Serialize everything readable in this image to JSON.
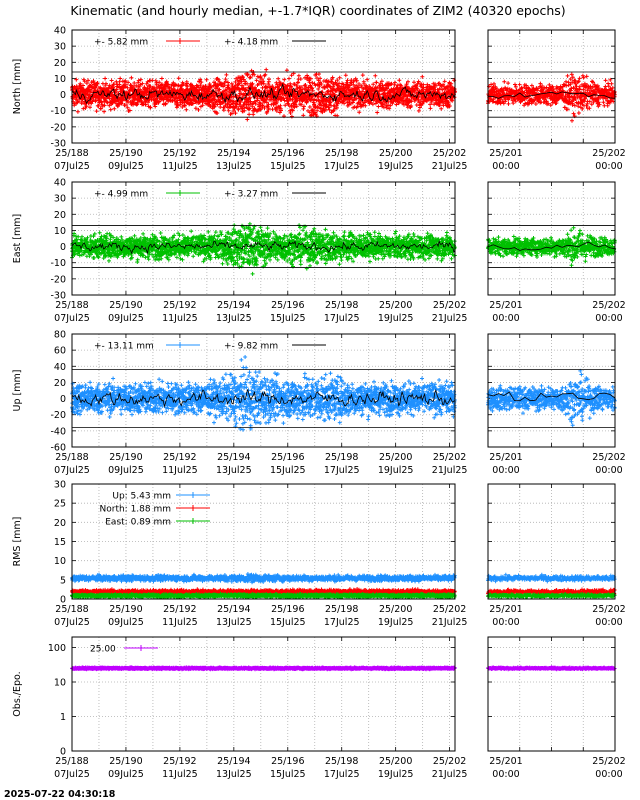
{
  "title": "Kinematic (and hourly median, +-1.7*IQR) coordinates of ZIM2 (40320 epochs)",
  "timestamp": "2025-07-22 04:30:18",
  "colors": {
    "north": "#ff0000",
    "east": "#00c000",
    "up": "#1e90ff",
    "obs": "#c000ff",
    "median": "#000000",
    "grid": "#b0b0b0"
  },
  "chart_data": [
    {
      "type": "scatter",
      "id": "north",
      "ylabel": "North [mm]",
      "ylim": [
        -30,
        40
      ],
      "yticks": [
        -30,
        -20,
        -10,
        0,
        10,
        20,
        30,
        40
      ],
      "iqr_band": [
        -14,
        14
      ],
      "legend": [
        {
          "name": "+-   5.82 mm",
          "kind": "scatter"
        },
        {
          "name": "+-   4.18 mm",
          "kind": "median"
        }
      ],
      "main_x_doy": [
        188,
        202.2
      ],
      "zoom_x_doy": [
        201,
        202
      ],
      "series_scatter": {
        "noise_mm": 5.82
      },
      "series_median": {
        "noise_mm": 4.18
      }
    },
    {
      "type": "scatter",
      "id": "east",
      "ylabel": "East [mm]",
      "ylim": [
        -30,
        40
      ],
      "yticks": [
        -30,
        -20,
        -10,
        0,
        10,
        20,
        30,
        40
      ],
      "iqr_band": [
        -13,
        13
      ],
      "legend": [
        {
          "name": "+-   4.99 mm",
          "kind": "scatter"
        },
        {
          "name": "+-   3.27 mm",
          "kind": "median"
        }
      ],
      "main_x_doy": [
        188,
        202.2
      ],
      "zoom_x_doy": [
        201,
        202
      ],
      "series_scatter": {
        "noise_mm": 4.99
      },
      "series_median": {
        "noise_mm": 3.27
      }
    },
    {
      "type": "scatter",
      "id": "up",
      "ylabel": "Up [mm]",
      "ylim": [
        -60,
        80
      ],
      "yticks": [
        -60,
        -40,
        -20,
        0,
        20,
        40,
        60,
        80
      ],
      "iqr_band": [
        -36,
        36
      ],
      "legend": [
        {
          "name": "+-   13.11 mm",
          "kind": "scatter"
        },
        {
          "name": "+-   9.82 mm",
          "kind": "median"
        }
      ],
      "main_x_doy": [
        188,
        202.2
      ],
      "zoom_x_doy": [
        201,
        202
      ],
      "series_scatter": {
        "noise_mm": 13.11
      },
      "series_median": {
        "noise_mm": 9.82
      }
    },
    {
      "type": "scatter",
      "id": "rms",
      "ylabel": "RMS [mm]",
      "ylim": [
        0,
        30
      ],
      "yticks": [
        0,
        5,
        10,
        15,
        20,
        25,
        30
      ],
      "legend": [
        {
          "name": "Up:   5.43 mm",
          "series": "up",
          "value": 5.43
        },
        {
          "name": "North:   1.88 mm",
          "series": "north",
          "value": 1.88
        },
        {
          "name": "East:   0.89 mm",
          "series": "east",
          "value": 0.89
        }
      ],
      "main_x_doy": [
        188,
        202.2
      ],
      "zoom_x_doy": [
        201,
        202
      ]
    },
    {
      "type": "scatter",
      "id": "obs",
      "ylabel": "Obs./Epo.",
      "yscale": "log",
      "yticks": [
        0,
        1,
        10,
        100
      ],
      "legend": [
        {
          "name": "25.00",
          "value": 25.0
        }
      ],
      "main_x_doy": [
        188,
        202.2
      ],
      "zoom_x_doy": [
        201,
        202
      ]
    }
  ],
  "x_axis_main": {
    "doy_ticks": [
      188,
      190,
      192,
      194,
      196,
      198,
      200,
      202
    ],
    "tick_labels_top": [
      "25/188",
      "25/190",
      "25/192",
      "25/194",
      "25/196",
      "25/198",
      "25/200",
      "25/202"
    ],
    "tick_labels_bottom": [
      "07Jul25",
      "09Jul25",
      "11Jul25",
      "13Jul25",
      "15Jul25",
      "17Jul25",
      "19Jul25",
      "21Jul25"
    ]
  },
  "x_axis_zoom": {
    "doy_ticks": [
      201,
      202
    ],
    "tick_labels_top": [
      "25/201",
      "25/202"
    ],
    "tick_labels_bottom": [
      "00:00",
      "00:00"
    ]
  }
}
